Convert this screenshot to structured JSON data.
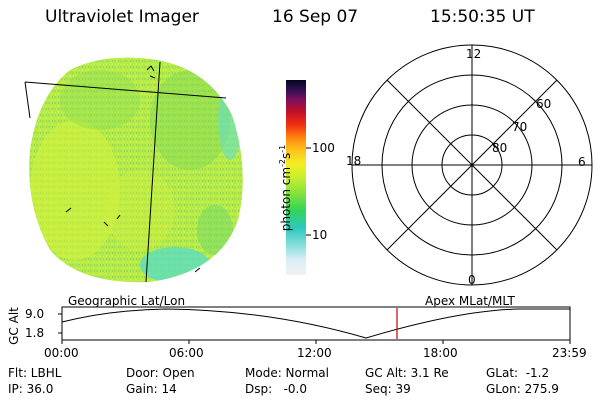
{
  "header": {
    "instrument": "Ultraviolet Imager",
    "date": "16 Sep 07",
    "time": "15:50:35 UT"
  },
  "colorbar": {
    "unit_label": "photon cm",
    "unit_exp1": "-2",
    "unit_s": "s",
    "unit_exp2": "-1",
    "ticks": [
      "100",
      "10"
    ]
  },
  "polar": {
    "mlt_labels": {
      "top": "12",
      "bottom": "0",
      "left": "18",
      "right": "6"
    },
    "lat_labels": [
      "60",
      "70",
      "80"
    ]
  },
  "image_titles": {
    "left": "Geographic Lat/Lon",
    "right": "Apex  MLat/MLT"
  },
  "orbit": {
    "ylabel": "GC Alt",
    "y_ticks": [
      "9.0",
      "1.8"
    ],
    "x_ticks": [
      "00:00",
      "06:00",
      "12:00",
      "18:00",
      "23:59"
    ],
    "marker_color": "#cc0000"
  },
  "status": {
    "col1": [
      "Flt: LBHL",
      "IP: 36.0"
    ],
    "col2": [
      "Door: Open",
      "Gain: 14"
    ],
    "col3": [
      "Mode: Normal",
      "Dsp:   -0.0"
    ],
    "col4": [
      "GC Alt: 3.1 Re",
      "Seq: 39"
    ],
    "col5": [
      "GLat:  -1.2",
      "GLon: 275.9"
    ]
  },
  "colors": {
    "disk_base": "#b8ee44",
    "disk_green": "#7fdc55",
    "disk_yellow": "#dbf23a",
    "disk_cyan": "#66e0c8"
  }
}
